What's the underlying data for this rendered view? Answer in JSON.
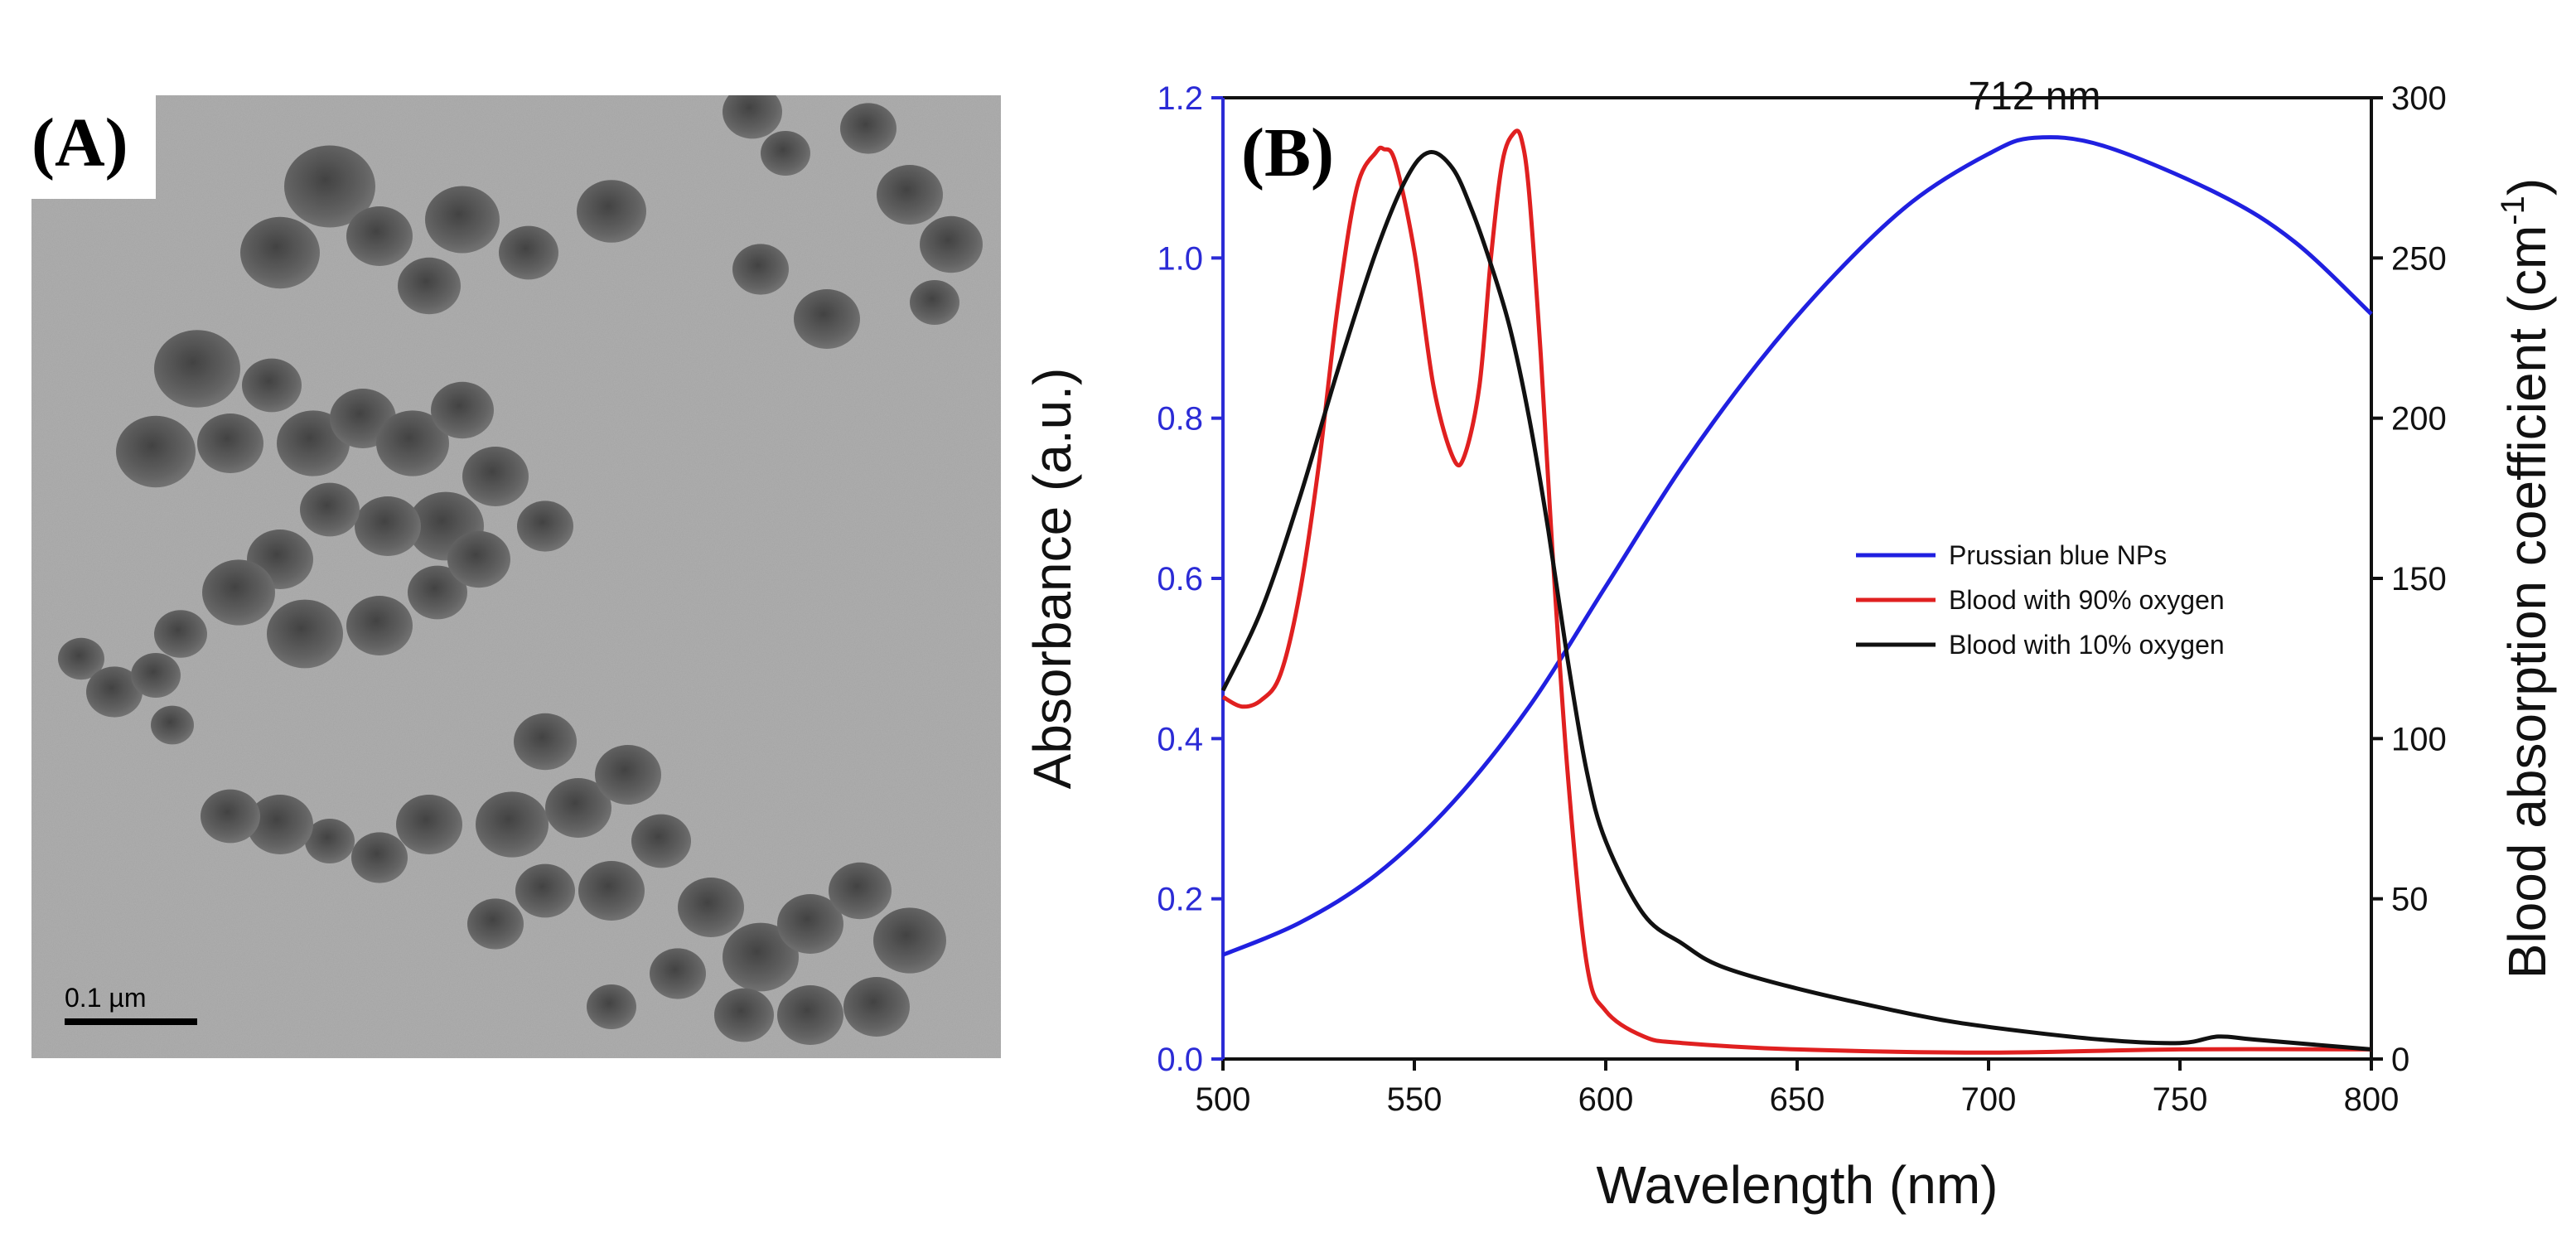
{
  "panel_a": {
    "label": "(A)",
    "scale_bar_label": "0.1 µm"
  },
  "chart_data": {
    "type": "line",
    "panel_label": "(B)",
    "xlabel": "Wavelength (nm)",
    "ylabel_left": "Absorbance (a.u.)",
    "ylabel_right_main": "Blood absorption coefficient (cm",
    "ylabel_right_sup": "-1",
    "ylabel_right_close": ")",
    "xlim": [
      500,
      800
    ],
    "ylim_left": [
      0,
      1.2
    ],
    "ylim_right": [
      0,
      300
    ],
    "x_ticks": [
      "500",
      "550",
      "600",
      "650",
      "700",
      "750",
      "800"
    ],
    "y_left_ticks": [
      "0.0",
      "0.2",
      "0.4",
      "0.6",
      "0.8",
      "1.0",
      "1.2"
    ],
    "y_right_ticks": [
      "0",
      "50",
      "100",
      "150",
      "200",
      "250",
      "300"
    ],
    "annotation": {
      "text": "712 nm",
      "x": 712
    },
    "legend_position": "center-right",
    "colors": {
      "left_axis": "#2b2bd6",
      "right_axis": "#111111"
    },
    "series": [
      {
        "name": "Prussian blue NPs",
        "axis": "left",
        "color": "#2020e0",
        "x": [
          500,
          520,
          540,
          560,
          580,
          600,
          620,
          640,
          660,
          680,
          700,
          712,
          730,
          760,
          780,
          800
        ],
        "y": [
          0.13,
          0.17,
          0.23,
          0.32,
          0.44,
          0.59,
          0.74,
          0.87,
          0.98,
          1.07,
          1.13,
          1.15,
          1.14,
          1.08,
          1.02,
          0.93
        ]
      },
      {
        "name": "Blood with 90% oxygen",
        "axis": "right",
        "color": "#e02020",
        "x": [
          500,
          505,
          510,
          515,
          520,
          525,
          530,
          535,
          540,
          542,
          545,
          550,
          555,
          560,
          563,
          567,
          570,
          573,
          576,
          578,
          580,
          583,
          586,
          590,
          595,
          600,
          610,
          620,
          650,
          700,
          750,
          800
        ],
        "y": [
          113,
          110,
          112,
          120,
          145,
          185,
          235,
          272,
          283,
          284,
          280,
          252,
          210,
          188,
          188,
          210,
          250,
          280,
          289,
          287,
          270,
          220,
          160,
          90,
          30,
          15,
          7,
          5,
          3,
          2,
          3,
          3
        ]
      },
      {
        "name": "Blood with 10% oxygen",
        "axis": "right",
        "color": "#111111",
        "x": [
          500,
          510,
          520,
          530,
          540,
          548,
          554,
          560,
          565,
          570,
          575,
          580,
          585,
          590,
          595,
          600,
          610,
          620,
          630,
          650,
          680,
          700,
          730,
          750,
          760,
          770,
          800
        ],
        "y": [
          115,
          140,
          175,
          215,
          252,
          275,
          283,
          278,
          265,
          248,
          228,
          200,
          165,
          125,
          90,
          68,
          45,
          36,
          29,
          22,
          14,
          10,
          6,
          5,
          7,
          6,
          3
        ]
      }
    ]
  }
}
